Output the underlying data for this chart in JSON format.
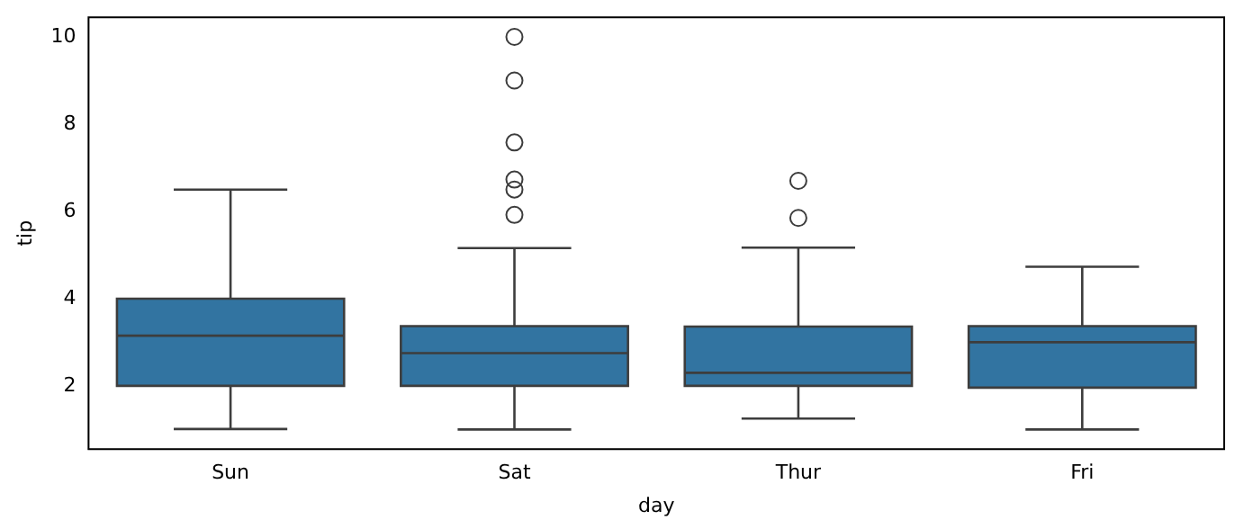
{
  "chart_data": {
    "type": "box",
    "xlabel": "day",
    "ylabel": "tip",
    "categories": [
      "Sun",
      "Sat",
      "Thur",
      "Fri"
    ],
    "color": "#3274a1",
    "boxes": [
      {
        "low": 1.01,
        "q1": 2.0,
        "median": 3.15,
        "q3": 4.0,
        "high": 6.5
      },
      {
        "low": 1.0,
        "q1": 2.0,
        "median": 2.75,
        "q3": 3.37,
        "high": 5.16,
        "outliers": [
          5.92,
          6.5,
          6.73,
          7.58,
          9.0,
          10.0
        ]
      },
      {
        "low": 1.25,
        "q1": 2.0,
        "median": 2.3,
        "q3": 3.36,
        "high": 5.17,
        "outliers": [
          5.85,
          6.7
        ]
      },
      {
        "low": 1.0,
        "q1": 1.96,
        "median": 3.0,
        "q3": 3.37,
        "high": 4.73
      }
    ],
    "ylim": [
      0.55,
      10.45
    ],
    "yticks": [
      2,
      4,
      6,
      8,
      10
    ]
  }
}
